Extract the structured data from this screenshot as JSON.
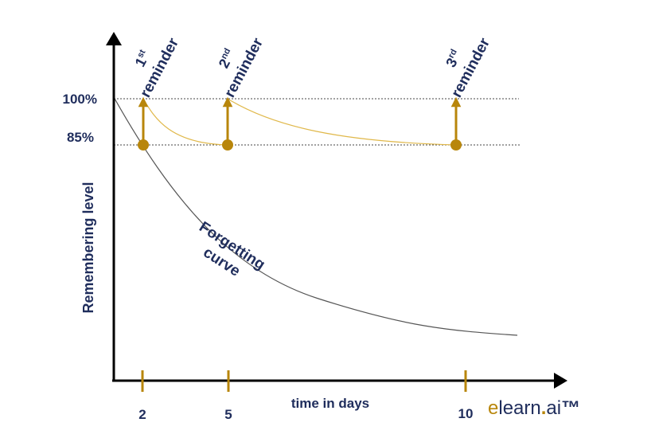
{
  "y_axis": {
    "label": "Remembering level",
    "ticks": [
      "100%",
      "85%"
    ]
  },
  "x_axis": {
    "label": "time in days",
    "ticks": [
      "2",
      "5",
      "10"
    ]
  },
  "curve_label": {
    "line1": "Forgetting",
    "line2": "curve"
  },
  "reminders": [
    {
      "num": "1",
      "sup": "st",
      "word": "reminder"
    },
    {
      "num": "2",
      "sup": "nd",
      "word": "reminder"
    },
    {
      "num": "3",
      "sup": "rd",
      "word": "reminder"
    }
  ],
  "brand": {
    "e": "e",
    "learn": "learn",
    "dot": ".",
    "ai": "ai",
    "tm": "™"
  },
  "colors": {
    "navy": "#1f2d5c",
    "gold": "#b8860b",
    "gold_light": "#e0b84a",
    "axis": "#000000",
    "curve": "#555555"
  }
}
